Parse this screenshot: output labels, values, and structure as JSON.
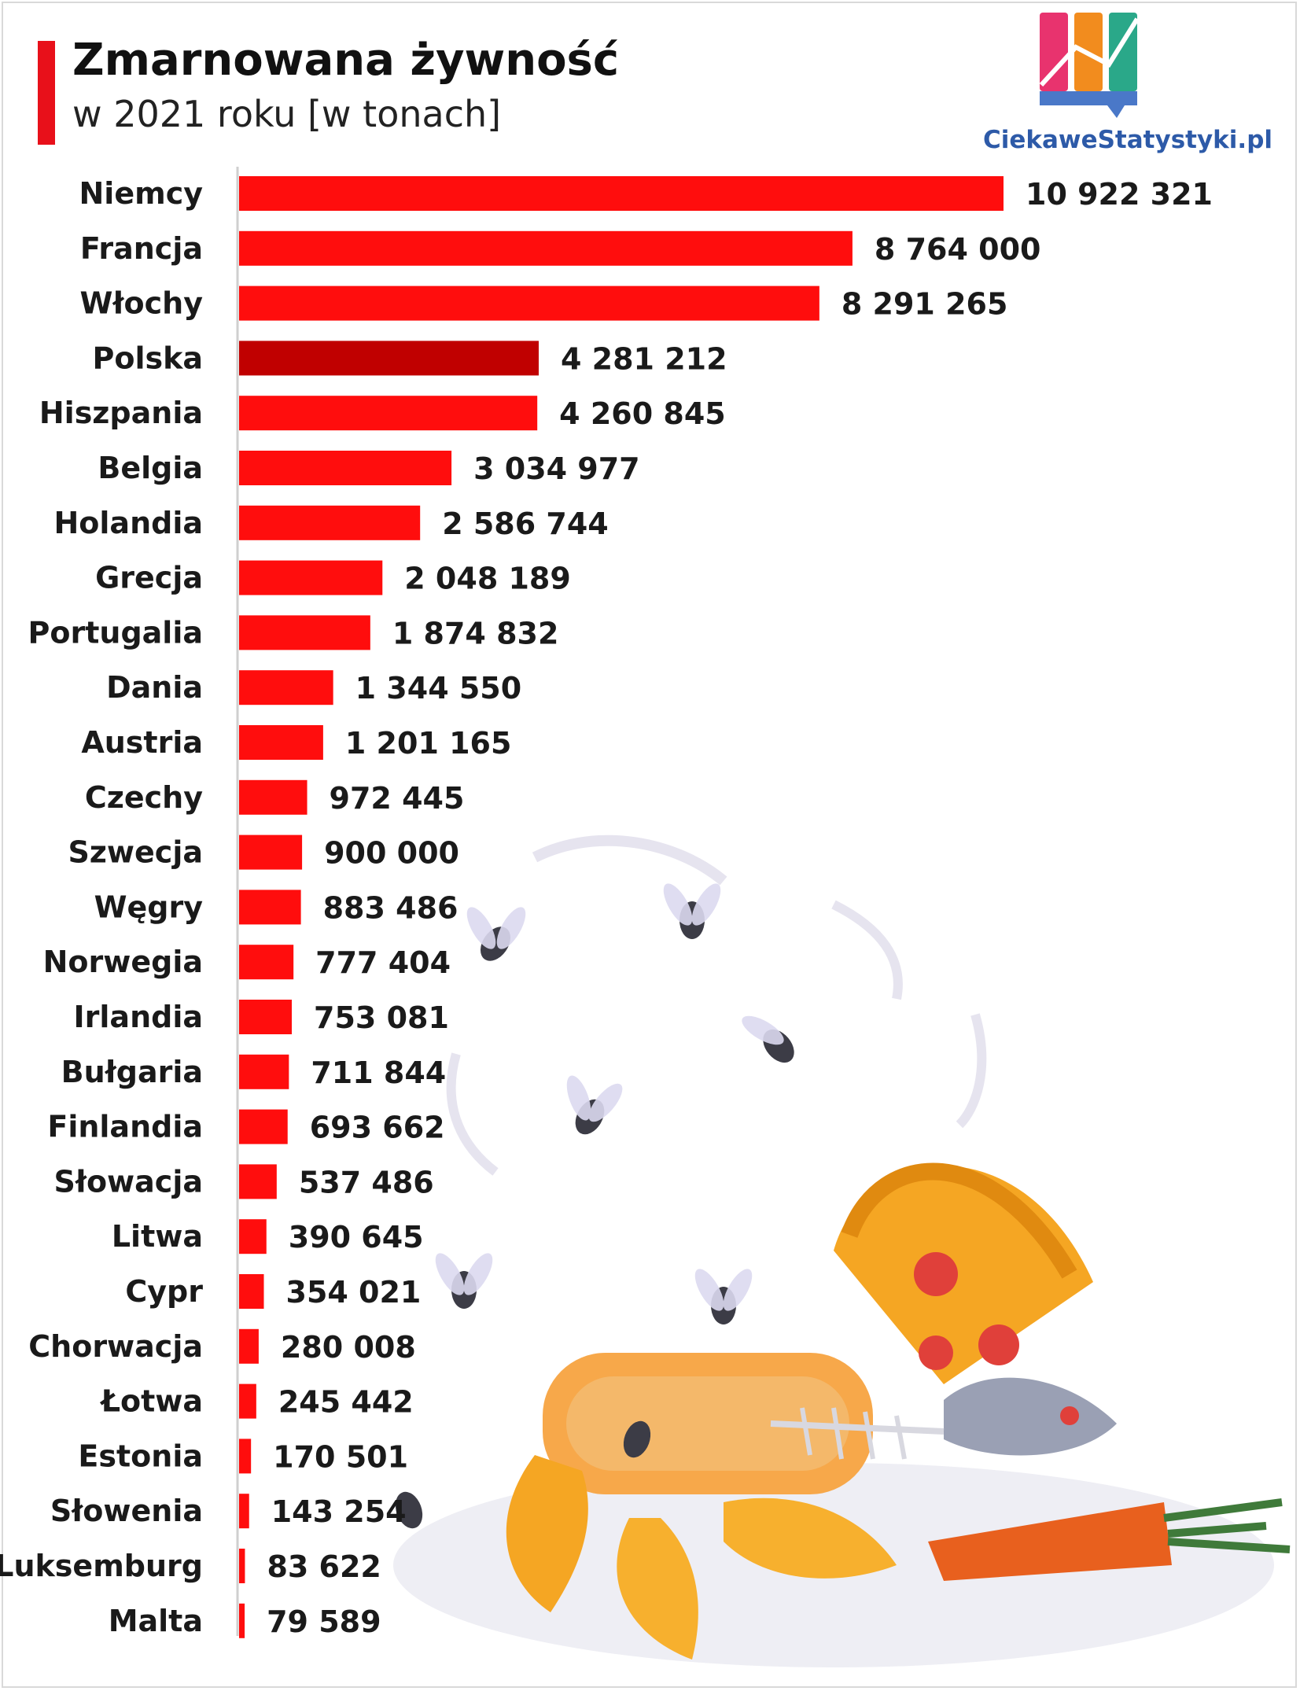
{
  "header": {
    "title": "Zmarnowana żywność",
    "subtitle": "w 2021 roku [w tonach]"
  },
  "logo": {
    "text": "CiekaweStatystyki.pl",
    "colors": [
      "#e8336e",
      "#f28c1e",
      "#2aa889",
      "#4a78c8"
    ]
  },
  "colors": {
    "bar": "#ff0d0d",
    "highlight": "#c00000",
    "accent": "#e8101a"
  },
  "chart_data": {
    "type": "bar",
    "orientation": "horizontal",
    "title": "Zmarnowana żywność",
    "subtitle": "w 2021 roku [w tonach]",
    "highlight": "Polska",
    "categories": [
      "Niemcy",
      "Francja",
      "Włochy",
      "Polska",
      "Hiszpania",
      "Belgia",
      "Holandia",
      "Grecja",
      "Portugalia",
      "Dania",
      "Austria",
      "Czechy",
      "Szwecja",
      "Węgry",
      "Norwegia",
      "Irlandia",
      "Bułgaria",
      "Finlandia",
      "Słowacja",
      "Litwa",
      "Cypr",
      "Chorwacja",
      "Łotwa",
      "Estonia",
      "Słowenia",
      "Luksemburg",
      "Malta"
    ],
    "values": [
      10922321,
      8764000,
      8291265,
      4281212,
      4260845,
      3034977,
      2586744,
      2048189,
      1874832,
      1344550,
      1201165,
      972445,
      900000,
      883486,
      777404,
      753081,
      711844,
      693662,
      537486,
      390645,
      354021,
      280008,
      245442,
      170501,
      143254,
      83622,
      79589
    ],
    "value_labels": [
      "10 922 321",
      "8 764 000",
      "8 291 265",
      "4 281 212",
      "4 260 845",
      "3 034 977",
      "2 586 744",
      "2 048 189",
      "1 874 832",
      "1 344 550",
      "1 201 165",
      "972 445",
      "900 000",
      "883 486",
      "777 404",
      "753 081",
      "711 844",
      "693 662",
      "537 486",
      "390 645",
      "354 021",
      "280 008",
      "245 442",
      "170 501",
      "143 254",
      "83 622",
      "79 589"
    ],
    "xlim": [
      0,
      10922321
    ],
    "grid": false,
    "legend": "none"
  }
}
